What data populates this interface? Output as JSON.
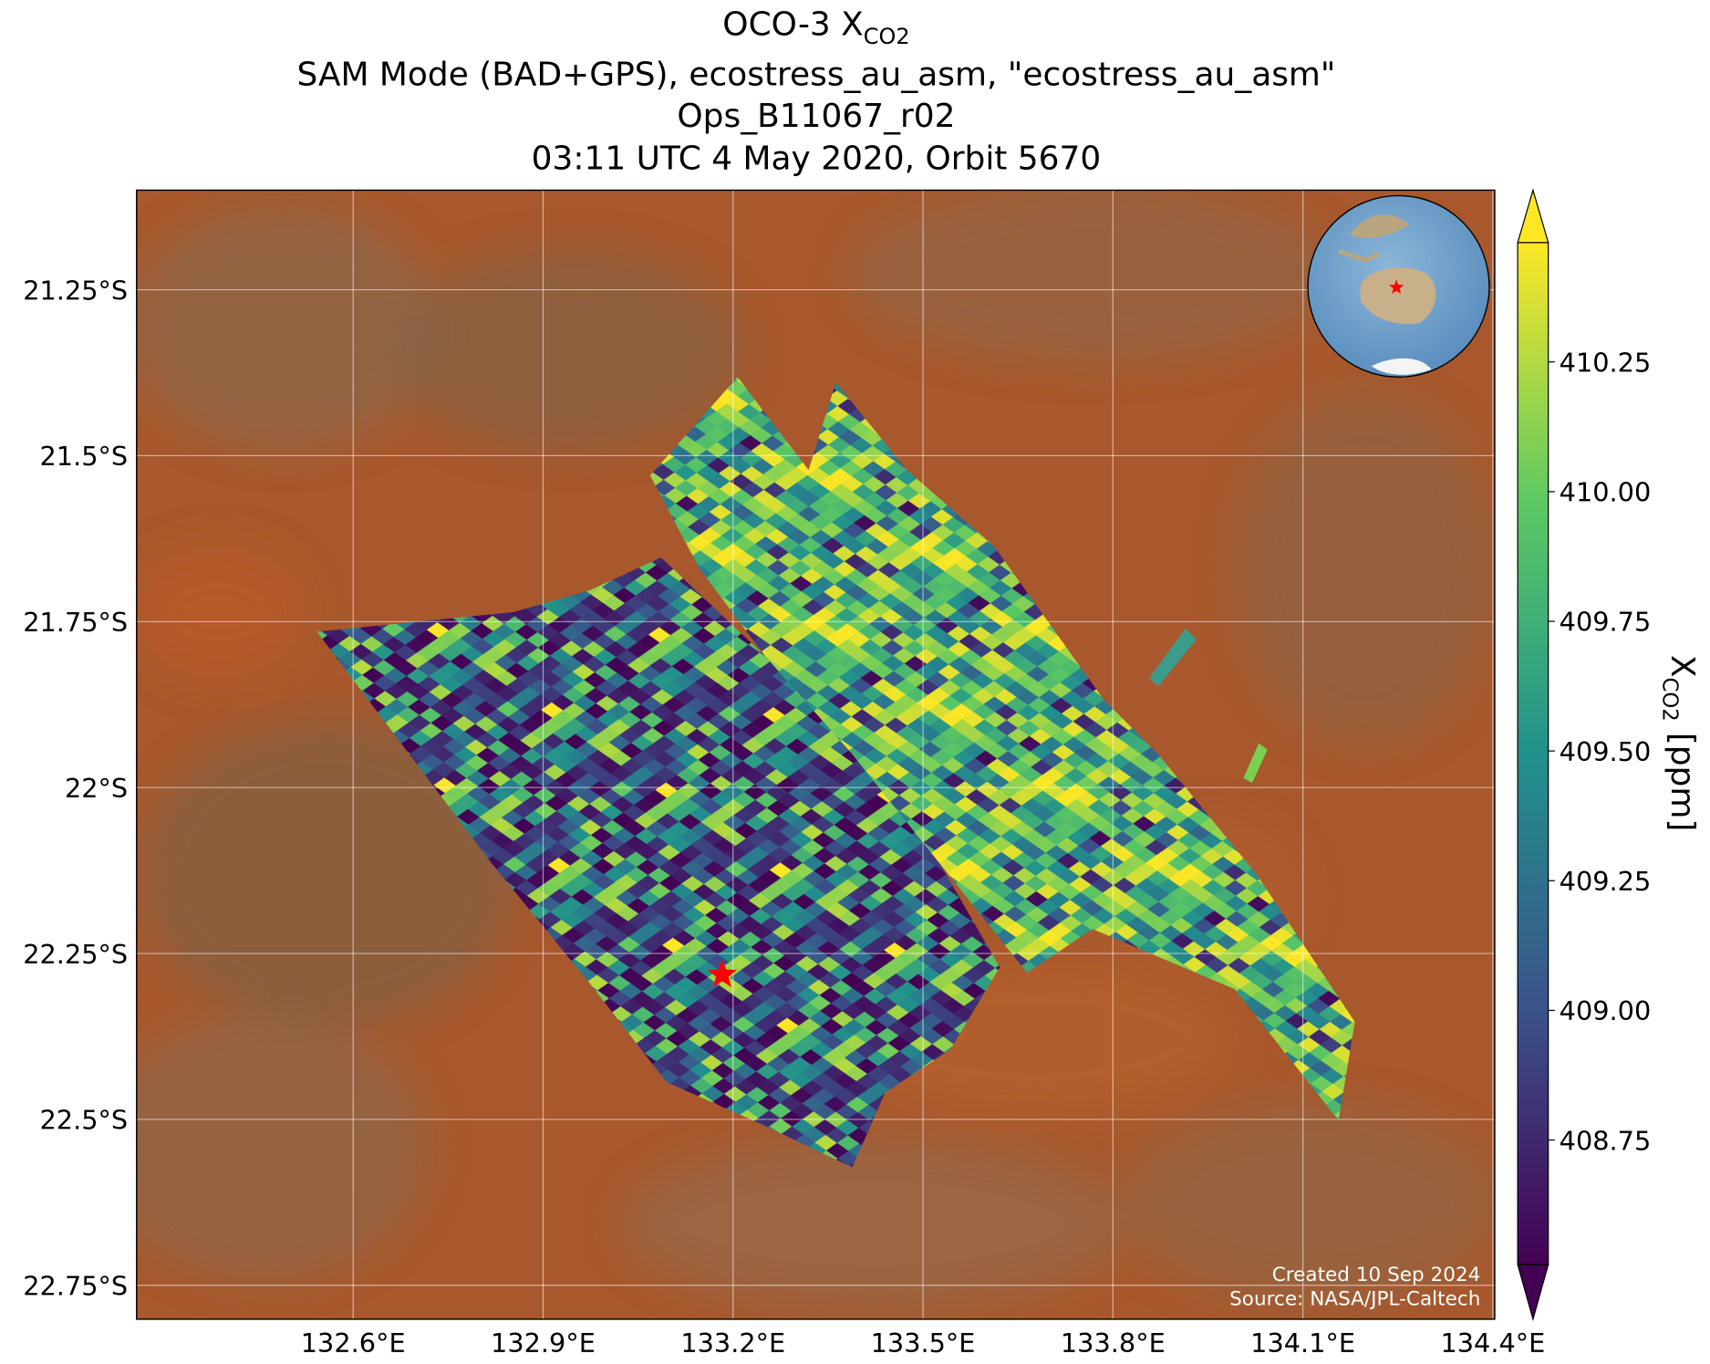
{
  "chart_data": {
    "type": "map",
    "title": "OCO-3 X",
    "title_subscript": "CO2",
    "subtitle": [
      "SAM Mode (BAD+GPS), ecostress_au_asm, \"ecostress_au_asm\"",
      "Ops_B11067_r02",
      "03:11 UTC 4 May 2020, Orbit 5670"
    ],
    "xlim": [
      132.258,
      134.403
    ],
    "ylim": [
      -22.801,
      -21.1
    ],
    "xticks": [
      {
        "value": 132.6,
        "label": "132.6°E"
      },
      {
        "value": 132.9,
        "label": "132.9°E"
      },
      {
        "value": 133.2,
        "label": "133.2°E"
      },
      {
        "value": 133.5,
        "label": "133.5°E"
      },
      {
        "value": 133.8,
        "label": "133.8°E"
      },
      {
        "value": 134.1,
        "label": "134.1°E"
      },
      {
        "value": 134.4,
        "label": "134.4°E"
      }
    ],
    "yticks": [
      {
        "value": -21.25,
        "label": "21.25°S"
      },
      {
        "value": -21.5,
        "label": "21.5°S"
      },
      {
        "value": -21.75,
        "label": "21.75°S"
      },
      {
        "value": -22,
        "label": "22°S"
      },
      {
        "value": -22.25,
        "label": "22.25°S"
      },
      {
        "value": -22.5,
        "label": "22.5°S"
      },
      {
        "value": -22.75,
        "label": "22.75°S"
      }
    ],
    "grid": true,
    "colorbar": {
      "label": "X",
      "label_subscript": "CO2",
      "label_unit": "[ppm]",
      "lim": [
        408.51,
        410.48
      ],
      "ticks": [
        408.75,
        {
          "value": 409,
          "label": "409.00"
        },
        409.25,
        {
          "value": 409.5,
          "label": "409.50"
        },
        409.75,
        {
          "value": 410,
          "label": "410.00"
        },
        410.25
      ],
      "colors": [
        "#440154",
        "#3b528b",
        "#21918c",
        "#5ec962",
        "#fde725"
      ],
      "extend": "both"
    },
    "target": {
      "lon": 133.183,
      "lat": -22.282,
      "color": "#ff0000"
    },
    "credits": [
      "Created 10 Sep 2024",
      "Source: NASA/JPL-Caltech"
    ]
  }
}
